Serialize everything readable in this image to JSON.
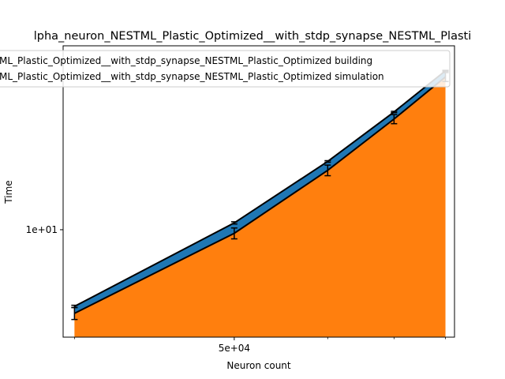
{
  "chart_data": {
    "type": "area",
    "title": "lpha_neuron_NESTML_Plastic_Optimized__with_stdp_synapse_NESTML_Plasti",
    "xlabel": "Neuron count",
    "ylabel": "Time",
    "xscale": "log",
    "yscale": "log",
    "x": [
      25000,
      50000,
      75000,
      100000,
      125000
    ],
    "x_ticks": [
      {
        "value": 50000,
        "label": "5e+04"
      }
    ],
    "x_minor_ticks": [
      75000,
      100000
    ],
    "y_ticks": [
      {
        "value": 10,
        "label": "1e+01"
      }
    ],
    "xlim": [
      23800,
      130000
    ],
    "ylim": [
      4.0,
      48.0
    ],
    "grid": false,
    "legend_position": "top-center",
    "series": [
      {
        "name": "ML_Plastic_Optimized__with_stdp_synapse_NESTML_Plastic_Optimized building",
        "color": "#1f77b4",
        "values": [
          0.3,
          0.9,
          1.3,
          1.6,
          2.0
        ],
        "err": [
          0.05,
          0.1,
          0.12,
          0.15,
          0.15
        ]
      },
      {
        "name": "ML_Plastic_Optimized__with_stdp_synapse_NESTML_Plastic_Optimized simulation",
        "color": "#ff7f0e",
        "values": [
          4.9,
          9.7,
          16.6,
          25.7,
          36.8
        ],
        "err": [
          0.25,
          0.45,
          0.75,
          1.0,
          1.4
        ]
      }
    ]
  }
}
